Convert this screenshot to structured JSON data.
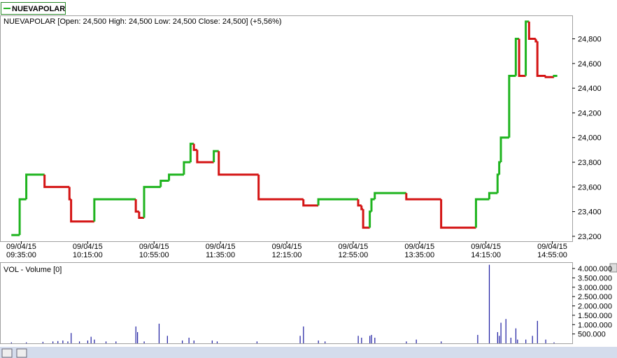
{
  "chart_data": [
    {
      "type": "step",
      "legend": "NUEVAPOLAR",
      "label": "NUEVAPOLAR [Open: 24,500  High: 24,500  Low: 24,500  Close: 24,500] (+5,56%)",
      "x": [
        "09/04/15 09:29:00",
        "09/04/15 09:34:00",
        "09/04/15 09:38:00",
        "09/04/15 09:49:00",
        "09/04/15 10:04:00",
        "09/04/15 10:05:00",
        "09/04/15 10:19:00",
        "09/04/15 10:44:00",
        "09/04/15 10:46:00",
        "09/04/15 10:49:00",
        "09/04/15 10:59:00",
        "09/04/15 11:04:00",
        "09/04/15 11:13:00",
        "09/04/15 11:17:00",
        "09/04/15 11:19:00",
        "09/04/15 11:21:00",
        "09/04/15 11:31:00",
        "09/04/15 11:34:00",
        "09/04/15 11:58:00",
        "09/04/15 12:25:00",
        "09/04/15 12:34:00",
        "09/04/15 12:58:00",
        "09/04/15 13:00:00",
        "09/04/15 13:01:00",
        "09/04/15 13:05:00",
        "09/04/15 13:06:00",
        "09/04/15 13:08:00",
        "09/04/15 13:27:00",
        "09/04/15 13:48:00",
        "09/04/15 14:09:00",
        "09/04/15 14:17:00",
        "09/04/15 14:22:00",
        "09/04/15 14:23:00",
        "09/04/15 14:24:00",
        "09/04/15 14:29:00",
        "09/04/15 14:33:00",
        "09/04/15 14:35:00",
        "09/04/15 14:39:00",
        "09/04/15 14:41:00",
        "09/04/15 14:45:00",
        "09/04/15 14:46:00",
        "09/04/15 14:51:00",
        "09/04/15 14:56:00",
        "09/04/15 14:58:00"
      ],
      "values": [
        23210,
        23500,
        23700,
        23600,
        23500,
        23320,
        23500,
        23400,
        23350,
        23600,
        23650,
        23700,
        23800,
        23950,
        23900,
        23800,
        23890,
        23700,
        23500,
        23450,
        23500,
        23450,
        23420,
        23270,
        23400,
        23500,
        23550,
        23500,
        23270,
        23500,
        23550,
        23700,
        23800,
        24000,
        24500,
        24800,
        24500,
        24940,
        24800,
        24780,
        24500,
        24490,
        24500,
        24500
      ],
      "up_color": "#1fb41f",
      "down_color": "#d41414",
      "xlim": [
        "09/04/15 09:23:00",
        "09/04/15 15:07:00"
      ],
      "ylim": [
        23160,
        24990
      ],
      "xticks": [
        "09/04/15 09:35:00",
        "09/04/15 10:15:00",
        "09/04/15 10:55:00",
        "09/04/15 11:35:00",
        "09/04/15 12:15:00",
        "09/04/15 12:55:00",
        "09/04/15 13:35:00",
        "09/04/15 14:15:00",
        "09/04/15 14:55:00"
      ],
      "yticks": [
        {
          "value": 23200,
          "label": "23,200"
        },
        {
          "value": 23400,
          "label": "23,400"
        },
        {
          "value": 23600,
          "label": "23,600"
        },
        {
          "value": 23800,
          "label": "23,800"
        },
        {
          "value": 24000,
          "label": "24,000"
        },
        {
          "value": 24200,
          "label": "24,200"
        },
        {
          "value": 24400,
          "label": "24,400"
        },
        {
          "value": 24600,
          "label": "24,600"
        },
        {
          "value": 24800,
          "label": "24,800"
        }
      ]
    },
    {
      "type": "bar",
      "label": "VOL - Volume [0]",
      "x": [
        "09/04/15 09:29:00",
        "09/04/15 09:38:00",
        "09/04/15 09:48:00",
        "09/04/15 09:54:00",
        "09/04/15 09:57:00",
        "09/04/15 10:00:00",
        "09/04/15 10:03:00",
        "09/04/15 10:05:00",
        "09/04/15 10:10:00",
        "09/04/15 10:15:00",
        "09/04/15 10:17:00",
        "09/04/15 10:19:00",
        "09/04/15 10:26:00",
        "09/04/15 10:32:00",
        "09/04/15 10:44:00",
        "09/04/15 10:45:00",
        "09/04/15 10:49:00",
        "09/04/15 10:58:00",
        "09/04/15 11:03:00",
        "09/04/15 11:12:00",
        "09/04/15 11:16:00",
        "09/04/15 11:19:00",
        "09/04/15 11:30:00",
        "09/04/15 11:33:00",
        "09/04/15 11:57:00",
        "09/04/15 12:23:00",
        "09/04/15 12:25:00",
        "09/04/15 12:34:00",
        "09/04/15 12:38:00",
        "09/04/15 12:58:00",
        "09/04/15 13:00:00",
        "09/04/15 13:05:00",
        "09/04/15 13:06:00",
        "09/04/15 13:08:00",
        "09/04/15 13:27:00",
        "09/04/15 13:33:00",
        "09/04/15 13:48:00",
        "09/04/15 14:10:00",
        "09/04/15 14:17:00",
        "09/04/15 14:22:00",
        "09/04/15 14:23:00",
        "09/04/15 14:24:00",
        "09/04/15 14:27:00",
        "09/04/15 14:30:00",
        "09/04/15 14:33:00",
        "09/04/15 14:34:00",
        "09/04/15 14:39:00",
        "09/04/15 14:43:00",
        "09/04/15 14:46:00",
        "09/04/15 14:51:00",
        "09/04/15 14:56:00"
      ],
      "values": [
        50000,
        50000,
        80000,
        100000,
        120000,
        150000,
        100000,
        550000,
        100000,
        150000,
        350000,
        200000,
        100000,
        100000,
        900000,
        600000,
        100000,
        1050000,
        400000,
        150000,
        300000,
        150000,
        150000,
        100000,
        100000,
        400000,
        900000,
        150000,
        100000,
        400000,
        300000,
        400000,
        450000,
        300000,
        100000,
        200000,
        100000,
        450000,
        4200000,
        600000,
        400000,
        1100000,
        1300000,
        300000,
        800000,
        200000,
        200000,
        400000,
        1200000,
        200000,
        50000
      ],
      "color": "#1a1aa0",
      "xlim": [
        "09/04/15 09:23:00",
        "09/04/15 15:07:00"
      ],
      "ylim": [
        0,
        4300000
      ],
      "yticks": [
        {
          "value": 500000,
          "label": "500.000"
        },
        {
          "value": 1000000,
          "label": "1.000.000"
        },
        {
          "value": 1500000,
          "label": "1.500.000"
        },
        {
          "value": 2000000,
          "label": "2.000.000"
        },
        {
          "value": 2500000,
          "label": "2.500.000"
        },
        {
          "value": 3000000,
          "label": "3.000.000"
        },
        {
          "value": 3500000,
          "label": "3.500.000"
        },
        {
          "value": 4000000,
          "label": "4.000.000"
        }
      ]
    }
  ]
}
